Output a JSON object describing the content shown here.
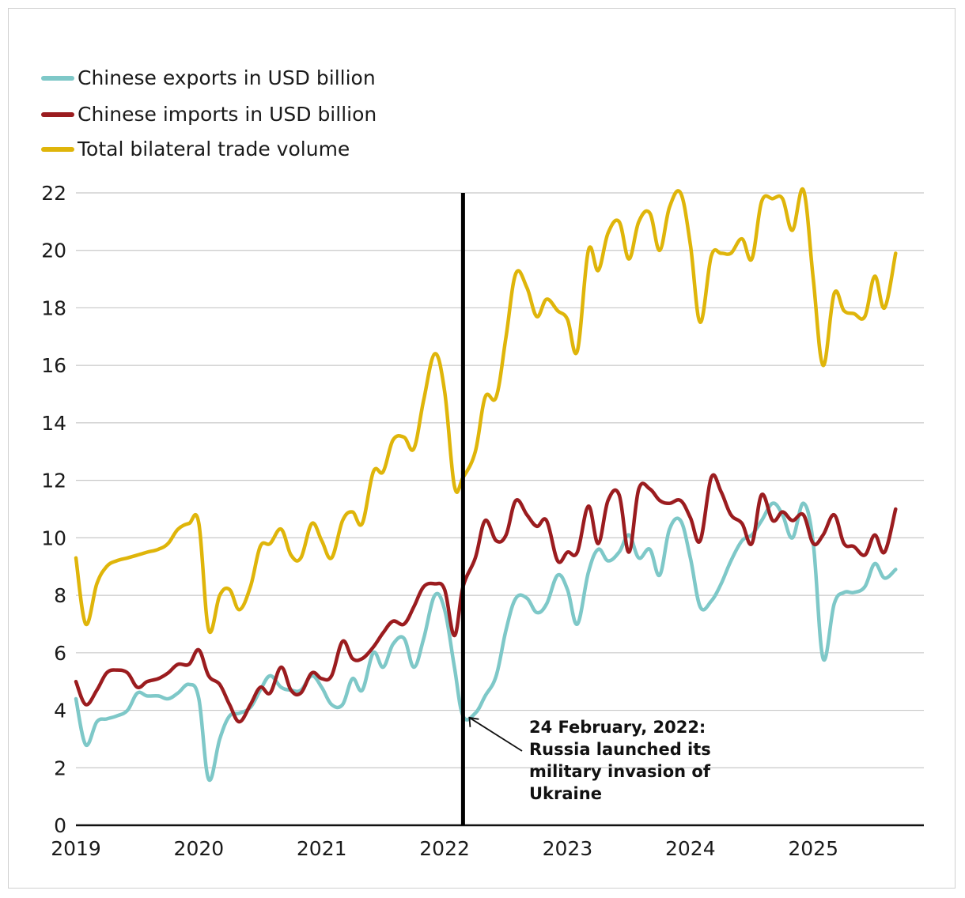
{
  "chart_data": {
    "type": "line",
    "title": "",
    "xlabel": "",
    "ylabel": "",
    "ylim": [
      0,
      22
    ],
    "yticks": [
      0,
      2,
      4,
      6,
      8,
      10,
      12,
      14,
      16,
      18,
      20,
      22
    ],
    "xlim": [
      2019.0,
      2025.75
    ],
    "xticks": [
      "2019",
      "2020",
      "2021",
      "2022",
      "2023",
      "2024",
      "2025"
    ],
    "grid": true,
    "legend_position": "top-left",
    "event_line": {
      "x": 2022.15,
      "label_lines": [
        "24 February, 2022:",
        "Russia launched its",
        "military invasion of",
        "Ukraine"
      ]
    },
    "series": [
      {
        "name": "Chinese exports in USD billion",
        "color": "#7ec8c8",
        "points": [
          [
            2019.0,
            4.4
          ],
          [
            2019.08,
            2.8
          ],
          [
            2019.17,
            3.6
          ],
          [
            2019.25,
            3.7
          ],
          [
            2019.33,
            3.8
          ],
          [
            2019.42,
            4.0
          ],
          [
            2019.5,
            4.6
          ],
          [
            2019.58,
            4.5
          ],
          [
            2019.67,
            4.5
          ],
          [
            2019.75,
            4.4
          ],
          [
            2019.83,
            4.6
          ],
          [
            2019.92,
            4.9
          ],
          [
            2020.0,
            4.4
          ],
          [
            2020.08,
            1.6
          ],
          [
            2020.17,
            3.0
          ],
          [
            2020.25,
            3.8
          ],
          [
            2020.33,
            3.9
          ],
          [
            2020.42,
            4.1
          ],
          [
            2020.5,
            4.7
          ],
          [
            2020.58,
            5.2
          ],
          [
            2020.67,
            4.8
          ],
          [
            2020.75,
            4.7
          ],
          [
            2020.83,
            4.7
          ],
          [
            2020.92,
            5.2
          ],
          [
            2021.0,
            4.8
          ],
          [
            2021.08,
            4.2
          ],
          [
            2021.17,
            4.2
          ],
          [
            2021.25,
            5.1
          ],
          [
            2021.33,
            4.7
          ],
          [
            2021.42,
            6.0
          ],
          [
            2021.5,
            5.5
          ],
          [
            2021.58,
            6.3
          ],
          [
            2021.67,
            6.5
          ],
          [
            2021.75,
            5.5
          ],
          [
            2021.83,
            6.5
          ],
          [
            2021.92,
            8.0
          ],
          [
            2022.0,
            7.5
          ],
          [
            2022.08,
            5.5
          ],
          [
            2022.15,
            3.8
          ],
          [
            2022.25,
            3.9
          ],
          [
            2022.33,
            4.5
          ],
          [
            2022.42,
            5.2
          ],
          [
            2022.5,
            6.8
          ],
          [
            2022.58,
            7.9
          ],
          [
            2022.67,
            7.9
          ],
          [
            2022.75,
            7.4
          ],
          [
            2022.83,
            7.7
          ],
          [
            2022.92,
            8.7
          ],
          [
            2023.0,
            8.2
          ],
          [
            2023.08,
            7.0
          ],
          [
            2023.17,
            8.8
          ],
          [
            2023.25,
            9.6
          ],
          [
            2023.33,
            9.2
          ],
          [
            2023.42,
            9.5
          ],
          [
            2023.5,
            10.1
          ],
          [
            2023.58,
            9.3
          ],
          [
            2023.67,
            9.6
          ],
          [
            2023.75,
            8.7
          ],
          [
            2023.83,
            10.3
          ],
          [
            2023.92,
            10.6
          ],
          [
            2024.0,
            9.3
          ],
          [
            2024.08,
            7.6
          ],
          [
            2024.17,
            7.8
          ],
          [
            2024.25,
            8.4
          ],
          [
            2024.33,
            9.2
          ],
          [
            2024.42,
            9.9
          ],
          [
            2024.5,
            10.1
          ],
          [
            2024.58,
            10.6
          ],
          [
            2024.67,
            11.2
          ],
          [
            2024.75,
            10.8
          ],
          [
            2024.83,
            10.0
          ],
          [
            2024.92,
            11.2
          ],
          [
            2025.0,
            9.8
          ],
          [
            2025.08,
            5.8
          ],
          [
            2025.17,
            7.7
          ],
          [
            2025.25,
            8.1
          ],
          [
            2025.33,
            8.1
          ],
          [
            2025.42,
            8.3
          ],
          [
            2025.5,
            9.1
          ],
          [
            2025.58,
            8.6
          ],
          [
            2025.67,
            8.9
          ]
        ]
      },
      {
        "name": "Chinese imports in USD billion",
        "color": "#9b1c1f",
        "points": [
          [
            2019.0,
            5.0
          ],
          [
            2019.08,
            4.2
          ],
          [
            2019.17,
            4.7
          ],
          [
            2019.25,
            5.3
          ],
          [
            2019.33,
            5.4
          ],
          [
            2019.42,
            5.3
          ],
          [
            2019.5,
            4.8
          ],
          [
            2019.58,
            5.0
          ],
          [
            2019.67,
            5.1
          ],
          [
            2019.75,
            5.3
          ],
          [
            2019.83,
            5.6
          ],
          [
            2019.92,
            5.6
          ],
          [
            2020.0,
            6.1
          ],
          [
            2020.08,
            5.2
          ],
          [
            2020.17,
            4.9
          ],
          [
            2020.25,
            4.2
          ],
          [
            2020.33,
            3.6
          ],
          [
            2020.42,
            4.2
          ],
          [
            2020.5,
            4.8
          ],
          [
            2020.58,
            4.6
          ],
          [
            2020.67,
            5.5
          ],
          [
            2020.75,
            4.7
          ],
          [
            2020.83,
            4.6
          ],
          [
            2020.92,
            5.3
          ],
          [
            2021.0,
            5.1
          ],
          [
            2021.08,
            5.2
          ],
          [
            2021.17,
            6.4
          ],
          [
            2021.25,
            5.8
          ],
          [
            2021.33,
            5.8
          ],
          [
            2021.42,
            6.2
          ],
          [
            2021.5,
            6.7
          ],
          [
            2021.58,
            7.1
          ],
          [
            2021.67,
            7.0
          ],
          [
            2021.75,
            7.6
          ],
          [
            2021.83,
            8.3
          ],
          [
            2021.92,
            8.4
          ],
          [
            2022.0,
            8.2
          ],
          [
            2022.08,
            6.6
          ],
          [
            2022.15,
            8.3
          ],
          [
            2022.25,
            9.3
          ],
          [
            2022.33,
            10.6
          ],
          [
            2022.42,
            9.9
          ],
          [
            2022.5,
            10.1
          ],
          [
            2022.58,
            11.3
          ],
          [
            2022.67,
            10.8
          ],
          [
            2022.75,
            10.4
          ],
          [
            2022.83,
            10.6
          ],
          [
            2022.92,
            9.2
          ],
          [
            2023.0,
            9.5
          ],
          [
            2023.08,
            9.5
          ],
          [
            2023.17,
            11.1
          ],
          [
            2023.25,
            9.8
          ],
          [
            2023.33,
            11.3
          ],
          [
            2023.42,
            11.5
          ],
          [
            2023.5,
            9.5
          ],
          [
            2023.58,
            11.7
          ],
          [
            2023.67,
            11.7
          ],
          [
            2023.75,
            11.3
          ],
          [
            2023.83,
            11.2
          ],
          [
            2023.92,
            11.3
          ],
          [
            2024.0,
            10.7
          ],
          [
            2024.08,
            9.9
          ],
          [
            2024.17,
            12.1
          ],
          [
            2024.25,
            11.6
          ],
          [
            2024.33,
            10.8
          ],
          [
            2024.42,
            10.5
          ],
          [
            2024.5,
            9.8
          ],
          [
            2024.58,
            11.5
          ],
          [
            2024.67,
            10.6
          ],
          [
            2024.75,
            10.9
          ],
          [
            2024.83,
            10.6
          ],
          [
            2024.92,
            10.8
          ],
          [
            2025.0,
            9.8
          ],
          [
            2025.08,
            10.1
          ],
          [
            2025.17,
            10.8
          ],
          [
            2025.25,
            9.8
          ],
          [
            2025.33,
            9.7
          ],
          [
            2025.42,
            9.4
          ],
          [
            2025.5,
            10.1
          ],
          [
            2025.58,
            9.5
          ],
          [
            2025.67,
            11.0
          ]
        ]
      },
      {
        "name": "Total bilateral trade volume",
        "color": "#dfb50a",
        "points": [
          [
            2019.0,
            9.3
          ],
          [
            2019.08,
            7.0
          ],
          [
            2019.17,
            8.4
          ],
          [
            2019.25,
            9.0
          ],
          [
            2019.33,
            9.2
          ],
          [
            2019.42,
            9.3
          ],
          [
            2019.5,
            9.4
          ],
          [
            2019.58,
            9.5
          ],
          [
            2019.67,
            9.6
          ],
          [
            2019.75,
            9.8
          ],
          [
            2019.83,
            10.3
          ],
          [
            2019.92,
            10.5
          ],
          [
            2020.0,
            10.5
          ],
          [
            2020.08,
            6.8
          ],
          [
            2020.17,
            8.0
          ],
          [
            2020.25,
            8.2
          ],
          [
            2020.33,
            7.5
          ],
          [
            2020.42,
            8.3
          ],
          [
            2020.5,
            9.7
          ],
          [
            2020.58,
            9.8
          ],
          [
            2020.67,
            10.3
          ],
          [
            2020.75,
            9.4
          ],
          [
            2020.83,
            9.3
          ],
          [
            2020.92,
            10.5
          ],
          [
            2021.0,
            9.9
          ],
          [
            2021.08,
            9.3
          ],
          [
            2021.17,
            10.6
          ],
          [
            2021.25,
            10.9
          ],
          [
            2021.33,
            10.5
          ],
          [
            2021.42,
            12.3
          ],
          [
            2021.5,
            12.3
          ],
          [
            2021.58,
            13.4
          ],
          [
            2021.67,
            13.5
          ],
          [
            2021.75,
            13.1
          ],
          [
            2021.83,
            14.8
          ],
          [
            2021.92,
            16.4
          ],
          [
            2022.0,
            15.1
          ],
          [
            2022.08,
            11.8
          ],
          [
            2022.15,
            12.1
          ],
          [
            2022.25,
            13.0
          ],
          [
            2022.33,
            14.9
          ],
          [
            2022.42,
            14.9
          ],
          [
            2022.5,
            17.0
          ],
          [
            2022.58,
            19.2
          ],
          [
            2022.67,
            18.7
          ],
          [
            2022.75,
            17.7
          ],
          [
            2022.83,
            18.3
          ],
          [
            2022.92,
            17.9
          ],
          [
            2023.0,
            17.6
          ],
          [
            2023.08,
            16.5
          ],
          [
            2023.17,
            20.0
          ],
          [
            2023.25,
            19.3
          ],
          [
            2023.33,
            20.6
          ],
          [
            2023.42,
            21.0
          ],
          [
            2023.5,
            19.7
          ],
          [
            2023.58,
            21.0
          ],
          [
            2023.67,
            21.3
          ],
          [
            2023.75,
            20.0
          ],
          [
            2023.83,
            21.5
          ],
          [
            2023.92,
            22.0
          ],
          [
            2024.0,
            20.2
          ],
          [
            2024.08,
            17.5
          ],
          [
            2024.17,
            19.8
          ],
          [
            2024.25,
            19.9
          ],
          [
            2024.33,
            19.9
          ],
          [
            2024.42,
            20.4
          ],
          [
            2024.5,
            19.7
          ],
          [
            2024.58,
            21.7
          ],
          [
            2024.67,
            21.8
          ],
          [
            2024.75,
            21.8
          ],
          [
            2024.83,
            20.7
          ],
          [
            2024.92,
            22.1
          ],
          [
            2025.0,
            19.0
          ],
          [
            2025.08,
            16.0
          ],
          [
            2025.17,
            18.5
          ],
          [
            2025.25,
            17.9
          ],
          [
            2025.33,
            17.8
          ],
          [
            2025.42,
            17.7
          ],
          [
            2025.5,
            19.1
          ],
          [
            2025.58,
            18.0
          ],
          [
            2025.67,
            19.9
          ]
        ]
      }
    ]
  }
}
